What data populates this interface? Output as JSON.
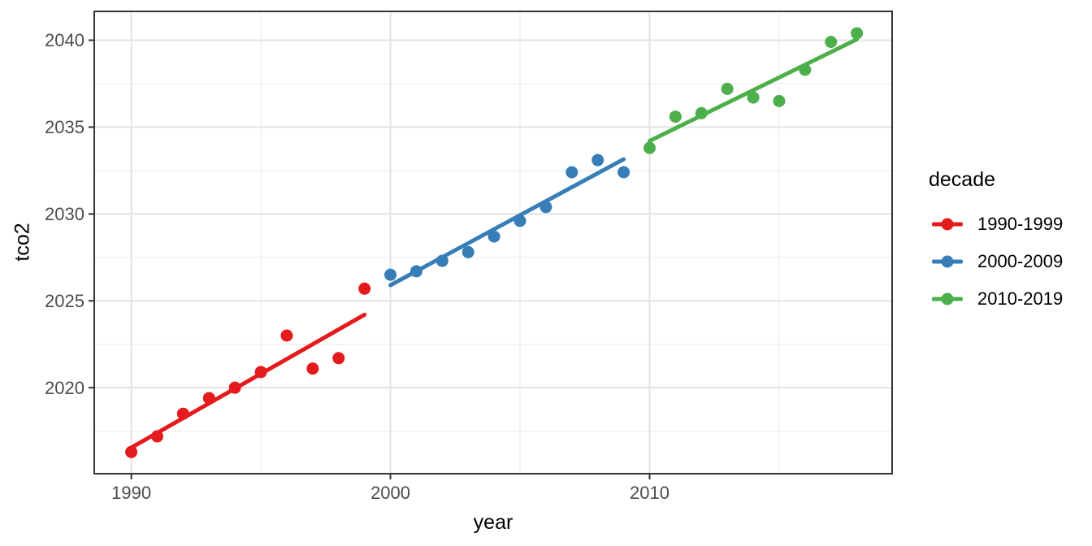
{
  "chart_data": {
    "type": "scatter",
    "title": "",
    "xlabel": "year",
    "ylabel": "tco2",
    "legend_title": "decade",
    "legend_position": "right",
    "grid": true,
    "xlim": [
      1988.57,
      2019.36
    ],
    "ylim": [
      2015.05,
      2041.66
    ],
    "x_ticks": [
      1990,
      2000,
      2010
    ],
    "y_ticks": [
      2020,
      2025,
      2030,
      2035,
      2040
    ],
    "x_minor_ticks": [
      1995,
      2005,
      2015
    ],
    "y_minor_ticks": [
      2017.5,
      2022.5,
      2027.5,
      2032.5,
      2037.5
    ],
    "series": [
      {
        "name": "1990-1999",
        "color": "#E41A1C",
        "x": [
          1990,
          1991,
          1992,
          1993,
          1994,
          1995,
          1996,
          1997,
          1998,
          1999
        ],
        "y": [
          2016.3,
          2017.2,
          2018.5,
          2019.4,
          2020.0,
          2020.9,
          2023.0,
          2021.1,
          2021.7,
          2025.7
        ],
        "trend_line": {
          "x": [
            1990,
            1999
          ],
          "y": [
            2016.55,
            2024.2
          ]
        }
      },
      {
        "name": "2000-2009",
        "color": "#377EB8",
        "x": [
          2000,
          2001,
          2002,
          2003,
          2004,
          2005,
          2006,
          2007,
          2008,
          2009
        ],
        "y": [
          2026.5,
          2026.7,
          2027.3,
          2027.8,
          2028.7,
          2029.6,
          2030.4,
          2032.4,
          2033.1,
          2032.4
        ],
        "trend_line": {
          "x": [
            2000,
            2009
          ],
          "y": [
            2025.9,
            2033.15
          ]
        }
      },
      {
        "name": "2010-2019",
        "color": "#4DAF4A",
        "x": [
          2010,
          2011,
          2012,
          2013,
          2014,
          2015,
          2016,
          2017,
          2018
        ],
        "y": [
          2033.8,
          2035.6,
          2035.8,
          2037.2,
          2036.7,
          2036.5,
          2038.3,
          2039.9,
          2040.4
        ],
        "trend_line": {
          "x": [
            2010,
            2018
          ],
          "y": [
            2034.2,
            2040.05
          ]
        }
      }
    ],
    "style": {
      "panel_background": "#ffffff",
      "panel_border_color": "#333333",
      "grid_major_color": "#e3e3e3",
      "grid_minor_color": "#eeeeee",
      "tick_color": "#333333",
      "tick_label_color": "#4d4d4d",
      "point_radius": 7.5,
      "trend_line_width": 5
    }
  }
}
